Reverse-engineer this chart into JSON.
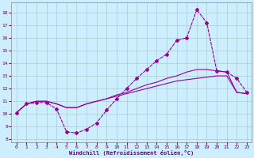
{
  "xlabel": "Windchill (Refroidissement éolien,°C)",
  "bg_color": "#cceeff",
  "grid_color": "#aacccc",
  "line_color": "#990099",
  "xlim": [
    -0.5,
    23.5
  ],
  "ylim": [
    7.8,
    18.8
  ],
  "xticks": [
    0,
    1,
    2,
    3,
    4,
    5,
    6,
    7,
    8,
    9,
    10,
    11,
    12,
    13,
    14,
    15,
    16,
    17,
    18,
    19,
    20,
    21,
    22,
    23
  ],
  "yticks": [
    8,
    9,
    10,
    11,
    12,
    13,
    14,
    15,
    16,
    17,
    18
  ],
  "line1_x": [
    0,
    1,
    2,
    3,
    4,
    5,
    6,
    7,
    8,
    9,
    10,
    11,
    12,
    13,
    14,
    15,
    16,
    17,
    18,
    19,
    20,
    21,
    22,
    23
  ],
  "line1_y": [
    10.1,
    10.8,
    10.9,
    10.9,
    10.4,
    8.6,
    8.5,
    8.8,
    9.3,
    10.3,
    11.2,
    12.0,
    12.8,
    13.5,
    14.2,
    14.7,
    15.8,
    16.0,
    18.2,
    17.2,
    13.4,
    13.3,
    12.8,
    11.7
  ],
  "line2_x": [
    0,
    1,
    2,
    3,
    4,
    5,
    6,
    7,
    8,
    9,
    10,
    11,
    12,
    13,
    14,
    15,
    16,
    17,
    18,
    19,
    20,
    21,
    22,
    23
  ],
  "line2_y": [
    10.1,
    10.8,
    11.0,
    11.0,
    10.8,
    10.5,
    10.5,
    10.8,
    11.0,
    11.2,
    11.5,
    11.7,
    12.0,
    12.3,
    12.5,
    12.8,
    13.0,
    13.3,
    13.5,
    13.5,
    13.4,
    13.3,
    11.7,
    11.6
  ],
  "line3_x": [
    0,
    1,
    2,
    3,
    4,
    5,
    6,
    7,
    8,
    9,
    10,
    11,
    12,
    13,
    14,
    15,
    16,
    17,
    18,
    19,
    20,
    21,
    22,
    23
  ],
  "line3_y": [
    10.1,
    10.8,
    11.0,
    11.0,
    10.8,
    10.5,
    10.5,
    10.8,
    11.0,
    11.2,
    11.4,
    11.6,
    11.8,
    12.0,
    12.2,
    12.4,
    12.6,
    12.7,
    12.8,
    12.9,
    13.0,
    13.0,
    11.7,
    11.6
  ]
}
